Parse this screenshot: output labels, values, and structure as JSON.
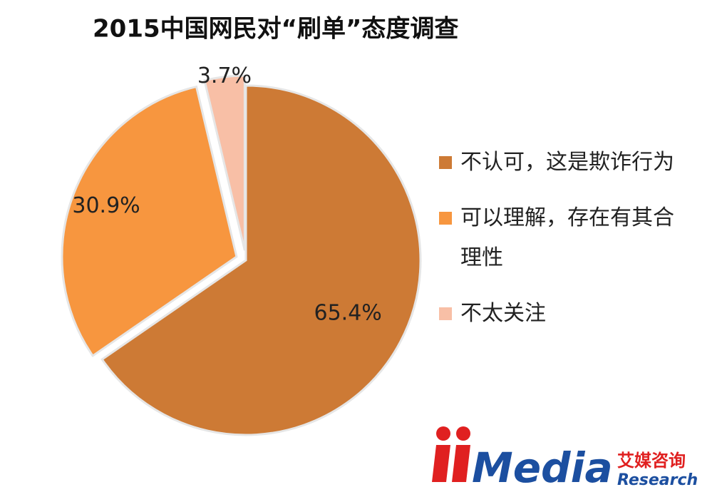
{
  "chart_data": {
    "type": "pie",
    "title": "2015中国网民对“刷单”态度调查",
    "categories": [
      "不认可，这是欺诈行为",
      "可以理解，存在有其合理性",
      "不太关注"
    ],
    "values": [
      65.4,
      30.9,
      3.7
    ],
    "value_labels": [
      "65.4%",
      "30.9%",
      "3.7%"
    ],
    "colors": [
      "#cd7a35",
      "#f7963f",
      "#f8bfa6"
    ],
    "legend": "right"
  },
  "logo": {
    "name": "Media",
    "cn": "艾媒咨询",
    "en": "Research"
  }
}
